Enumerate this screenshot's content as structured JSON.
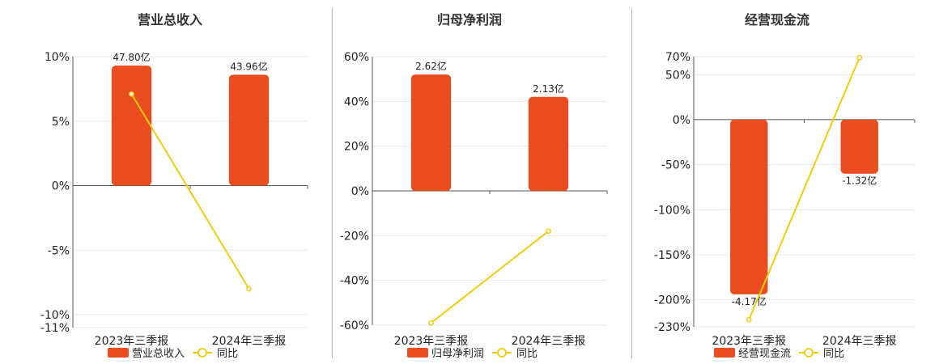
{
  "colors": {
    "bar": "#E94C1F",
    "line": "#F2CC0C",
    "grid": "#E8E8E8",
    "axis": "#555555",
    "divider": "#BBBBBB"
  },
  "chart_data": [
    {
      "type": "bar",
      "title": "营业总收入",
      "categories": [
        "2023年三季报",
        "2024年三季报"
      ],
      "series": [
        {
          "name": "营业总收入",
          "type": "bar",
          "values": [
            9.3,
            8.6
          ],
          "labels": [
            "47.80亿",
            "43.96亿"
          ]
        },
        {
          "name": "同比",
          "type": "line",
          "values": [
            7.1,
            -8.0
          ]
        }
      ],
      "ylim": [
        -11,
        10
      ],
      "yticks": [
        10,
        5,
        0,
        -5,
        -10,
        -11
      ],
      "ytick_labels": [
        "10%",
        "5%",
        "0%",
        "-5%",
        "-10%",
        "-11%"
      ],
      "legend": [
        "营业总收入",
        "同比"
      ],
      "legend_position": "bottom",
      "grid": true
    },
    {
      "type": "bar",
      "title": "归母净利润",
      "categories": [
        "2023年三季报",
        "2024年三季报"
      ],
      "series": [
        {
          "name": "归母净利润",
          "type": "bar",
          "values": [
            52,
            42
          ],
          "labels": [
            "2.62亿",
            "2.13亿"
          ]
        },
        {
          "name": "同比",
          "type": "line",
          "values": [
            -59,
            -18
          ]
        }
      ],
      "ylim": [
        -60,
        60
      ],
      "yticks": [
        60,
        40,
        20,
        0,
        -20,
        -40,
        -60
      ],
      "ytick_labels": [
        "60%",
        "40%",
        "20%",
        "0%",
        "-20%",
        "-40%",
        "-60%"
      ],
      "legend": [
        "归母净利润",
        "同比"
      ],
      "legend_position": "bottom",
      "grid": true
    },
    {
      "type": "bar",
      "title": "经营现金流",
      "categories": [
        "2023年三季报",
        "2024年三季报"
      ],
      "series": [
        {
          "name": "经营现金流",
          "type": "bar",
          "values": [
            -194,
            -60
          ],
          "labels": [
            "-4.17亿",
            "-1.32亿"
          ]
        },
        {
          "name": "同比",
          "type": "line",
          "values": [
            -222,
            69
          ]
        }
      ],
      "ylim": [
        -230,
        70
      ],
      "yticks": [
        70,
        50,
        0,
        -50,
        -100,
        -150,
        -200,
        -230
      ],
      "ytick_labels": [
        "70%",
        "50%",
        "0%",
        "-50%",
        "-100%",
        "-150%",
        "-200%",
        "-230%"
      ],
      "legend": [
        "经营现金流",
        "同比"
      ],
      "legend_position": "bottom",
      "grid": true
    }
  ]
}
